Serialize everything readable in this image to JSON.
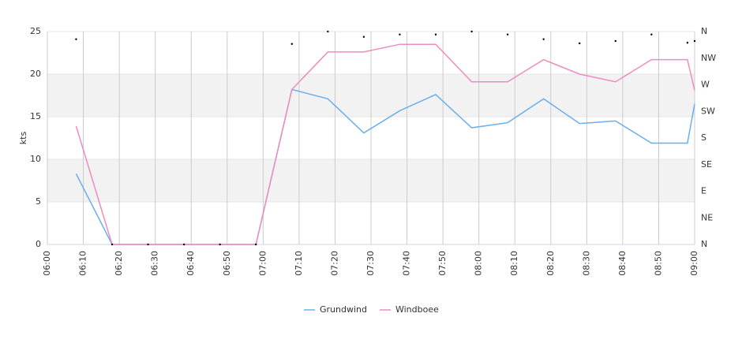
{
  "chart_data": {
    "type": "line",
    "y_label": "kts",
    "x": [
      "06:08",
      "06:18",
      "06:28",
      "06:38",
      "06:48",
      "06:58",
      "07:08",
      "07:18",
      "07:28",
      "07:38",
      "07:48",
      "07:58",
      "08:08",
      "08:18",
      "08:28",
      "08:38",
      "08:48",
      "08:58",
      "09:00"
    ],
    "series": [
      {
        "name": "Grundwind",
        "color": "#6aaeee",
        "values": [
          8.3,
          0,
          0,
          0,
          0,
          0,
          18.2,
          17.1,
          13.1,
          15.7,
          17.6,
          13.7,
          14.3,
          17.1,
          14.2,
          14.5,
          11.9,
          11.9,
          16.5
        ]
      },
      {
        "name": "Windboee",
        "color": "#ee8cc0",
        "values": [
          13.9,
          0,
          0,
          0,
          0,
          0,
          18.2,
          22.6,
          22.6,
          23.5,
          23.5,
          19.1,
          19.1,
          21.7,
          20,
          19.1,
          21.7,
          21.7,
          18.1
        ]
      },
      {
        "axis": "y2",
        "mode": "markers",
        "color": "#000000",
        "values": [
          347,
          0,
          0,
          0,
          0,
          0,
          339,
          360,
          351,
          355,
          355,
          360,
          355,
          347,
          340,
          344,
          355,
          341,
          344
        ]
      }
    ],
    "xlim": [
      "06:00",
      "09:00"
    ],
    "xticks": [
      "06:00",
      "06:10",
      "06:20",
      "06:30",
      "06:40",
      "06:50",
      "07:00",
      "07:10",
      "07:20",
      "07:30",
      "07:40",
      "07:50",
      "08:00",
      "08:10",
      "08:20",
      "08:30",
      "08:40",
      "08:50",
      "09:00"
    ],
    "ylim": [
      0,
      25
    ],
    "yticks": [
      0,
      5,
      10,
      15,
      20,
      25
    ],
    "y2lim": [
      0,
      360
    ],
    "y2ticks": [
      {
        "value": 0,
        "label": "N"
      },
      {
        "value": 45,
        "label": "NE"
      },
      {
        "value": 90,
        "label": "E"
      },
      {
        "value": 135,
        "label": "SE"
      },
      {
        "value": 180,
        "label": "S"
      },
      {
        "value": 225,
        "label": "SW"
      },
      {
        "value": 270,
        "label": "W"
      },
      {
        "value": 315,
        "label": "NW"
      },
      {
        "value": 360,
        "label": "N"
      }
    ],
    "grid": true,
    "legend": "bottom"
  }
}
